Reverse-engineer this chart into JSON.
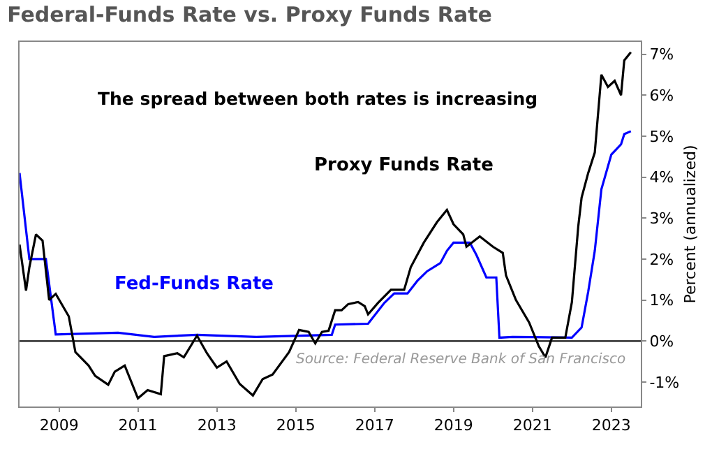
{
  "chart_data": {
    "type": "line",
    "title": "Federal-Funds Rate vs. Proxy Funds Rate",
    "ylabel": "Percent (annualized)",
    "annotations": [
      "The spread between both rates is increasing",
      "Source: Federal Reserve Bank of San Francisco"
    ],
    "xlim": [
      "2008-01",
      "2023-10"
    ],
    "xticks": [
      {
        "value": "2009-01",
        "label": "2009"
      },
      {
        "value": "2011-01",
        "label": "2011"
      },
      {
        "value": "2013-01",
        "label": "2013"
      },
      {
        "value": "2015-01",
        "label": "2015"
      },
      {
        "value": "2017-01",
        "label": "2017"
      },
      {
        "value": "2019-01",
        "label": "2019"
      },
      {
        "value": "2021-01",
        "label": "2021"
      },
      {
        "value": "2023-01",
        "label": "2023"
      }
    ],
    "ylim": [
      -1.6,
      7.3
    ],
    "yticks": [
      {
        "value": -1,
        "label": "-1%"
      },
      {
        "value": 0,
        "label": "0%"
      },
      {
        "value": 1,
        "label": "1%"
      },
      {
        "value": 2,
        "label": "2%"
      },
      {
        "value": 3,
        "label": "3%"
      },
      {
        "value": 4,
        "label": "4%"
      },
      {
        "value": 5,
        "label": "5%"
      },
      {
        "value": 6,
        "label": "6%"
      },
      {
        "value": 7,
        "label": "7%"
      }
    ],
    "legend": false,
    "marker": "none",
    "line_style": "solid",
    "ref_lines": [
      {
        "axis": "y",
        "value": 0,
        "color": "#000000"
      }
    ],
    "series": [
      {
        "name": "Fed-Funds Rate",
        "color": "#0000ff",
        "x": [
          "2008-01",
          "2008-04",
          "2008-09",
          "2008-12",
          "2010-07",
          "2011-06",
          "2012-07",
          "2014-01",
          "2015-12",
          "2016-01",
          "2016-11",
          "2017-04",
          "2017-07",
          "2017-11",
          "2018-02",
          "2018-05",
          "2018-09",
          "2018-11",
          "2019-01",
          "2019-06",
          "2019-08",
          "2019-11",
          "2020-02",
          "2020-03",
          "2020-07",
          "2022-01",
          "2022-04",
          "2022-06",
          "2022-08",
          "2022-10",
          "2023-01",
          "2023-04",
          "2023-05",
          "2023-07"
        ],
        "values": [
          4.1,
          2.0,
          2.0,
          0.16,
          0.2,
          0.1,
          0.15,
          0.1,
          0.15,
          0.4,
          0.42,
          0.93,
          1.16,
          1.16,
          1.47,
          1.7,
          1.9,
          2.2,
          2.4,
          2.4,
          2.1,
          1.55,
          1.55,
          0.08,
          0.1,
          0.08,
          0.33,
          1.2,
          2.2,
          3.7,
          4.55,
          4.8,
          5.05,
          5.12
        ]
      },
      {
        "name": "Proxy Funds Rate",
        "color": "#000000",
        "x": [
          "2008-01",
          "2008-03",
          "2008-04",
          "2008-06",
          "2008-08",
          "2008-10",
          "2008-12",
          "2009-04",
          "2009-06",
          "2009-10",
          "2009-12",
          "2010-04",
          "2010-06",
          "2010-09",
          "2011-01",
          "2011-04",
          "2011-08",
          "2011-09",
          "2012-01",
          "2012-03",
          "2012-07",
          "2012-10",
          "2013-01",
          "2013-04",
          "2013-08",
          "2013-12",
          "2014-03",
          "2014-06",
          "2014-11",
          "2015-02",
          "2015-05",
          "2015-07",
          "2015-09",
          "2015-11",
          "2016-01",
          "2016-03",
          "2016-05",
          "2016-08",
          "2016-10",
          "2016-11",
          "2017-02",
          "2017-06",
          "2017-10",
          "2017-12",
          "2018-04",
          "2018-08",
          "2018-11",
          "2019-01",
          "2019-04",
          "2019-05",
          "2019-09",
          "2020-01",
          "2020-04",
          "2020-05",
          "2020-08",
          "2020-12",
          "2021-03",
          "2021-05",
          "2021-07",
          "2021-11",
          "2022-01",
          "2022-03",
          "2022-04",
          "2022-06",
          "2022-08",
          "2022-10",
          "2022-12",
          "2023-02",
          "2023-04",
          "2023-05",
          "2023-07"
        ],
        "values": [
          2.35,
          1.23,
          1.8,
          2.6,
          2.45,
          1.0,
          1.15,
          0.6,
          -0.27,
          -0.6,
          -0.85,
          -1.07,
          -0.75,
          -0.6,
          -1.4,
          -1.2,
          -1.3,
          -0.37,
          -0.3,
          -0.4,
          0.13,
          -0.3,
          -0.65,
          -0.5,
          -1.05,
          -1.33,
          -0.93,
          -0.82,
          -0.27,
          0.27,
          0.22,
          -0.06,
          0.22,
          0.25,
          0.75,
          0.75,
          0.9,
          0.95,
          0.85,
          0.65,
          0.93,
          1.25,
          1.25,
          1.8,
          2.4,
          2.9,
          3.2,
          2.85,
          2.6,
          2.3,
          2.55,
          2.3,
          2.15,
          1.6,
          1.0,
          0.45,
          -0.13,
          -0.4,
          0.08,
          0.08,
          0.95,
          2.8,
          3.5,
          4.1,
          4.6,
          6.5,
          6.2,
          6.35,
          6.0,
          6.85,
          7.05
        ]
      }
    ]
  }
}
